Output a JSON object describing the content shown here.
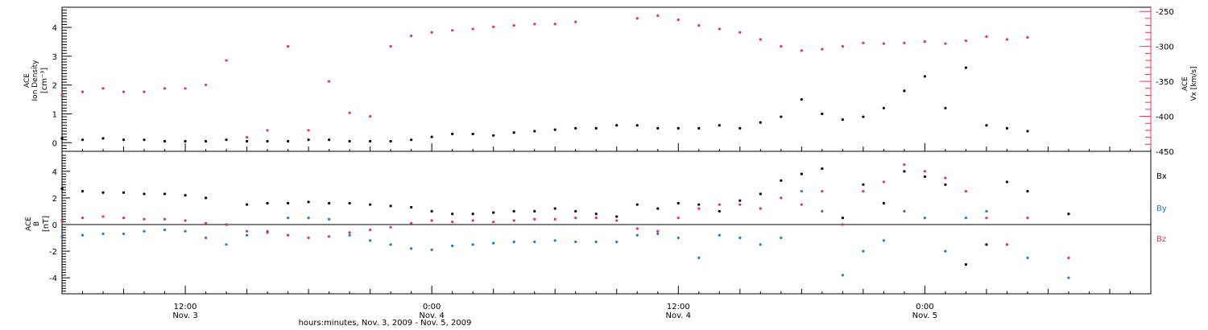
{
  "figure": {
    "xlabel": "hours:minutes, Nov.  3, 2009 - Nov.  5, 2009",
    "x_ticks": [
      {
        "label": "12:00",
        "sublabel": "Nov. 3",
        "hour": 12
      },
      {
        "label": "0:00",
        "sublabel": "Nov. 4",
        "hour": 24
      },
      {
        "label": "12:00",
        "sublabel": "Nov. 4",
        "hour": 36
      },
      {
        "label": "0:00",
        "sublabel": "Nov. 5",
        "hour": 48
      }
    ],
    "xlim_hours": [
      6,
      59
    ]
  },
  "chart_data": [
    {
      "type": "scatter",
      "panel": "top",
      "ylabel_left": [
        "ACE",
        "Ion Density",
        "[cm⁻³]"
      ],
      "ylabel_right": [
        "ACE",
        "Vx [km/s]"
      ],
      "ylim_left": [
        -0.3,
        4.7
      ],
      "ylim_right": [
        -450,
        -244
      ],
      "yticks_left": [
        0,
        1,
        2,
        3,
        4
      ],
      "yticks_right": [
        -450,
        -400,
        -350,
        -300,
        -250
      ],
      "colors": {
        "density": "#000000",
        "vx": "#e8305c"
      },
      "series": [
        {
          "axis": "left",
          "color": "#000000",
          "points": [
            [
              6,
              0.15
            ],
            [
              7,
              0.1
            ],
            [
              8,
              0.15
            ],
            [
              9,
              0.1
            ],
            [
              10,
              0.1
            ],
            [
              11,
              0.05
            ],
            [
              12,
              0.05
            ],
            [
              13,
              0.05
            ],
            [
              14,
              0.1
            ],
            [
              15,
              0.05
            ],
            [
              16,
              0.05
            ],
            [
              17,
              0.05
            ],
            [
              18,
              0.1
            ],
            [
              19,
              0.1
            ],
            [
              20,
              0.05
            ],
            [
              21,
              0.05
            ],
            [
              22,
              0.05
            ],
            [
              23,
              0.1
            ],
            [
              24,
              0.2
            ],
            [
              25,
              0.3
            ],
            [
              26,
              0.3
            ],
            [
              27,
              0.25
            ],
            [
              28,
              0.35
            ],
            [
              29,
              0.4
            ],
            [
              30,
              0.45
            ],
            [
              31,
              0.5
            ],
            [
              32,
              0.5
            ],
            [
              33,
              0.6
            ],
            [
              34,
              0.6
            ],
            [
              35,
              0.5
            ],
            [
              36,
              0.5
            ],
            [
              37,
              0.5
            ],
            [
              38,
              0.6
            ],
            [
              39,
              0.5
            ],
            [
              40,
              0.7
            ],
            [
              41,
              0.9
            ],
            [
              42,
              1.5
            ],
            [
              43,
              1.0
            ],
            [
              44,
              0.8
            ],
            [
              45,
              0.9
            ],
            [
              46,
              1.2
            ],
            [
              47,
              1.8
            ],
            [
              48,
              2.3
            ],
            [
              49,
              1.2
            ],
            [
              50,
              2.6
            ],
            [
              51,
              0.6
            ],
            [
              52,
              0.5
            ],
            [
              53,
              0.4
            ]
          ]
        },
        {
          "axis": "right",
          "color": "#e8305c",
          "points": [
            [
              6,
              -370
            ],
            [
              7,
              -365
            ],
            [
              8,
              -360
            ],
            [
              9,
              -365
            ],
            [
              10,
              -365
            ],
            [
              11,
              -360
            ],
            [
              12,
              -360
            ],
            [
              13,
              -355
            ],
            [
              14,
              -320
            ],
            [
              15,
              -430
            ],
            [
              16,
              -420
            ],
            [
              17,
              -300
            ],
            [
              18,
              -420
            ],
            [
              19,
              -350
            ],
            [
              20,
              -395
            ],
            [
              21,
              -400
            ],
            [
              22,
              -300
            ],
            [
              23,
              -285
            ],
            [
              24,
              -280
            ],
            [
              25,
              -277
            ],
            [
              26,
              -275
            ],
            [
              27,
              -272
            ],
            [
              28,
              -270
            ],
            [
              29,
              -268
            ],
            [
              30,
              -268
            ],
            [
              31,
              -265
            ],
            [
              34,
              -260
            ],
            [
              35,
              -256
            ],
            [
              36,
              -262
            ],
            [
              37,
              -270
            ],
            [
              38,
              -275
            ],
            [
              39,
              -280
            ],
            [
              40,
              -290
            ],
            [
              41,
              -300
            ],
            [
              42,
              -306
            ],
            [
              43,
              -304
            ],
            [
              44,
              -300
            ],
            [
              45,
              -295
            ],
            [
              46,
              -296
            ],
            [
              47,
              -295
            ],
            [
              48,
              -293
            ],
            [
              49,
              -296
            ],
            [
              50,
              -292
            ],
            [
              51,
              -286
            ],
            [
              52,
              -290
            ],
            [
              53,
              -287
            ]
          ]
        }
      ]
    },
    {
      "type": "scatter",
      "panel": "bottom",
      "ylabel_left": [
        "ACE",
        "B",
        "[nT]"
      ],
      "ylim": [
        -5.2,
        5.5
      ],
      "yticks": [
        -4,
        -2,
        0,
        2,
        4
      ],
      "legend": [
        "Bx",
        "By",
        "Bz"
      ],
      "series": [
        {
          "name": "Bx",
          "color": "#000000",
          "points": [
            [
              6,
              2.7
            ],
            [
              7,
              2.5
            ],
            [
              8,
              2.4
            ],
            [
              9,
              2.4
            ],
            [
              10,
              2.3
            ],
            [
              11,
              2.3
            ],
            [
              12,
              2.2
            ],
            [
              13,
              2.0
            ],
            [
              14,
              0
            ],
            [
              15,
              1.5
            ],
            [
              16,
              1.6
            ],
            [
              17,
              1.6
            ],
            [
              18,
              1.7
            ],
            [
              19,
              1.6
            ],
            [
              20,
              1.6
            ],
            [
              21,
              1.5
            ],
            [
              22,
              1.4
            ],
            [
              23,
              1.3
            ],
            [
              24,
              1.0
            ],
            [
              25,
              0.8
            ],
            [
              26,
              0.8
            ],
            [
              27,
              0.9
            ],
            [
              28,
              1.0
            ],
            [
              29,
              1.0
            ],
            [
              30,
              1.2
            ],
            [
              31,
              1.0
            ],
            [
              32,
              0.8
            ],
            [
              33,
              0.6
            ],
            [
              34,
              1.5
            ],
            [
              35,
              1.2
            ],
            [
              36,
              1.6
            ],
            [
              37,
              1.5
            ],
            [
              38,
              1.0
            ],
            [
              39,
              1.8
            ],
            [
              40,
              2.3
            ],
            [
              41,
              3.3
            ],
            [
              42,
              3.8
            ],
            [
              43,
              4.2
            ],
            [
              44,
              0.5
            ],
            [
              45,
              3.0
            ],
            [
              46,
              1.6
            ],
            [
              47,
              4.0
            ],
            [
              48,
              3.6
            ],
            [
              49,
              3.0
            ],
            [
              50,
              -3.0
            ],
            [
              51,
              -1.5
            ],
            [
              52,
              3.2
            ],
            [
              53,
              2.5
            ],
            [
              55,
              0.8
            ]
          ]
        },
        {
          "name": "By",
          "color": "#1c7ad8",
          "points": [
            [
              6,
              -0.9
            ],
            [
              7,
              -0.8
            ],
            [
              8,
              -0.7
            ],
            [
              9,
              -0.7
            ],
            [
              10,
              -0.5
            ],
            [
              11,
              -0.4
            ],
            [
              12,
              -0.5
            ],
            [
              13,
              -1.0
            ],
            [
              14,
              -1.5
            ],
            [
              15,
              -0.8
            ],
            [
              16,
              -0.5
            ],
            [
              17,
              0.5
            ],
            [
              18,
              0.5
            ],
            [
              19,
              0.4
            ],
            [
              20,
              -0.8
            ],
            [
              21,
              -1.2
            ],
            [
              22,
              -1.5
            ],
            [
              23,
              -1.8
            ],
            [
              24,
              -1.9
            ],
            [
              25,
              -1.6
            ],
            [
              26,
              -1.5
            ],
            [
              27,
              -1.4
            ],
            [
              28,
              -1.3
            ],
            [
              29,
              -1.3
            ],
            [
              30,
              -1.2
            ],
            [
              31,
              -1.3
            ],
            [
              32,
              -1.3
            ],
            [
              33,
              -1.3
            ],
            [
              34,
              -0.8
            ],
            [
              35,
              -0.7
            ],
            [
              36,
              -1.0
            ],
            [
              37,
              -2.5
            ],
            [
              38,
              -0.8
            ],
            [
              39,
              -1.0
            ],
            [
              40,
              -1.5
            ],
            [
              41,
              -1.0
            ],
            [
              42,
              2.5
            ],
            [
              43,
              1.0
            ],
            [
              44,
              -3.8
            ],
            [
              45,
              -2.0
            ],
            [
              46,
              -1.2
            ],
            [
              47,
              1.0
            ],
            [
              48,
              0.5
            ],
            [
              49,
              -2.0
            ],
            [
              50,
              0.5
            ],
            [
              51,
              1.0
            ],
            [
              52,
              -1.5
            ],
            [
              53,
              -2.5
            ],
            [
              55,
              -4.0
            ]
          ]
        },
        {
          "name": "Bz",
          "color": "#e8305c",
          "points": [
            [
              6,
              0.3
            ],
            [
              7,
              0.5
            ],
            [
              8,
              0.6
            ],
            [
              9,
              0.5
            ],
            [
              10,
              0.4
            ],
            [
              11,
              0.4
            ],
            [
              12,
              0.3
            ],
            [
              13,
              0.1
            ],
            [
              14,
              0
            ],
            [
              15,
              -0.5
            ],
            [
              16,
              -0.6
            ],
            [
              17,
              -0.8
            ],
            [
              18,
              -1.0
            ],
            [
              19,
              -0.9
            ],
            [
              20,
              -0.6
            ],
            [
              21,
              -0.4
            ],
            [
              22,
              -0.2
            ],
            [
              23,
              0.1
            ],
            [
              24,
              0.3
            ],
            [
              25,
              0.2
            ],
            [
              26,
              0.3
            ],
            [
              27,
              0.2
            ],
            [
              28,
              0.3
            ],
            [
              29,
              0.4
            ],
            [
              30,
              0.4
            ],
            [
              31,
              0.5
            ],
            [
              32,
              0.5
            ],
            [
              33,
              0.3
            ],
            [
              34,
              -0.3
            ],
            [
              35,
              -0.5
            ],
            [
              36,
              0.5
            ],
            [
              37,
              1.2
            ],
            [
              38,
              1.5
            ],
            [
              39,
              1.5
            ],
            [
              40,
              1.2
            ],
            [
              41,
              2.0
            ],
            [
              42,
              1.5
            ],
            [
              43,
              2.5
            ],
            [
              44,
              0
            ],
            [
              45,
              2.5
            ],
            [
              46,
              3.2
            ],
            [
              47,
              4.5
            ],
            [
              48,
              4.0
            ],
            [
              49,
              3.5
            ],
            [
              50,
              2.5
            ],
            [
              51,
              0.5
            ],
            [
              52,
              -1.5
            ],
            [
              53,
              0.5
            ],
            [
              55,
              -2.5
            ]
          ]
        }
      ]
    }
  ]
}
